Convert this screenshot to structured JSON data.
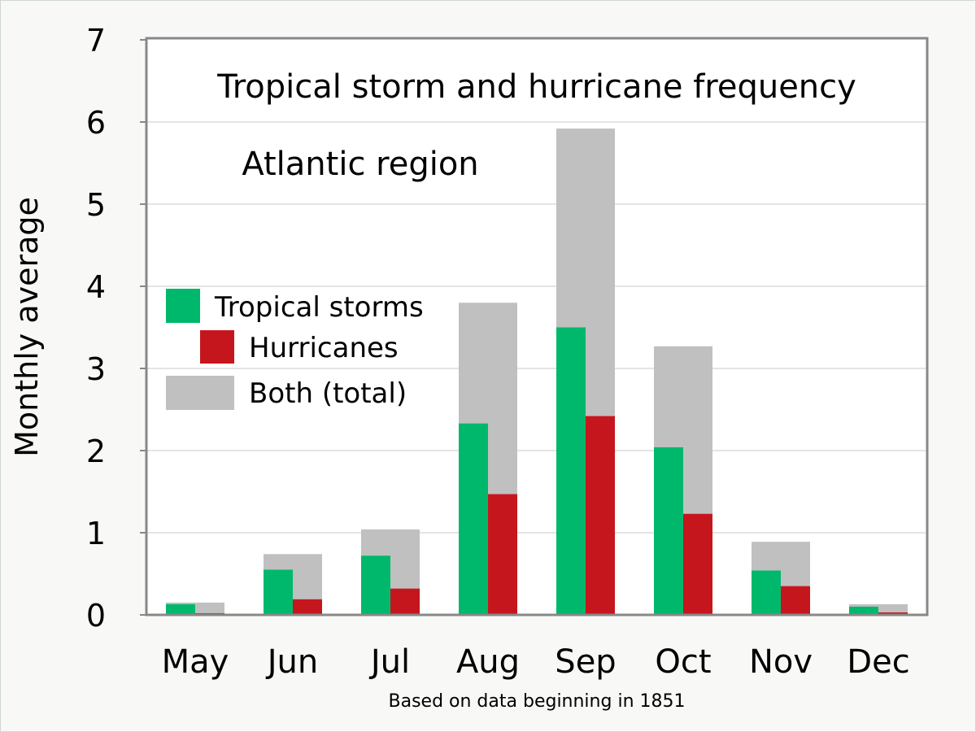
{
  "colors": {
    "tropical_storms": "#00b86b",
    "hurricanes": "#c6161d",
    "total": "#c0c0c0",
    "grid": "#c8c8c8",
    "axis": "#888888",
    "text": "#000000",
    "plot_background": "#ffffff"
  },
  "chart_data": {
    "type": "bar",
    "title": "Tropical storm and hurricane frequency",
    "subtitle": "Atlantic region",
    "ylabel": "Monthly average",
    "note": "Based on data beginning in 1851",
    "ylim": [
      0,
      7
    ],
    "yticks": [
      "0",
      "1",
      "2",
      "3",
      "4",
      "5",
      "6",
      "7"
    ],
    "grid": true,
    "legend_position": "left",
    "categories": [
      "May",
      "Jun",
      "Jul",
      "Aug",
      "Sep",
      "Oct",
      "Nov",
      "Dec"
    ],
    "series": [
      {
        "name": "Tropical storms",
        "values": [
          0.13,
          0.55,
          0.72,
          2.33,
          3.5,
          2.04,
          0.54,
          0.1
        ]
      },
      {
        "name": "Hurricanes",
        "values": [
          0.02,
          0.19,
          0.32,
          1.47,
          2.42,
          1.23,
          0.35,
          0.03
        ]
      },
      {
        "name": "Both (total)",
        "values": [
          0.15,
          0.74,
          1.04,
          3.8,
          5.92,
          3.27,
          0.89,
          0.13
        ]
      }
    ]
  }
}
